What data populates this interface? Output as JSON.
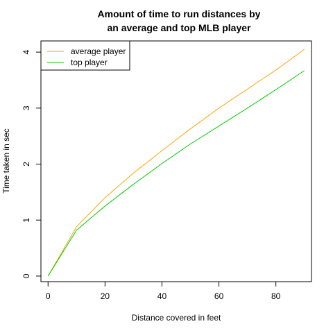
{
  "chart_data": {
    "type": "line",
    "title_line1": "Amount of time to run distances by",
    "title_line2": "an average and top MLB player",
    "xlabel": "Distance covered in feet",
    "ylabel": "Time taken in sec",
    "x": [
      0,
      10,
      20,
      30,
      40,
      50,
      60,
      70,
      80,
      90
    ],
    "series": [
      {
        "name": "average player",
        "color": "#FFA500",
        "values": [
          0,
          0.88,
          1.4,
          1.84,
          2.24,
          2.63,
          3.0,
          3.34,
          3.68,
          4.05
        ]
      },
      {
        "name": "top player",
        "color": "#00CD00",
        "values": [
          0,
          0.82,
          1.25,
          1.64,
          2.01,
          2.36,
          2.68,
          3.0,
          3.33,
          3.67
        ]
      }
    ],
    "xlim": [
      -2.5,
      92.5
    ],
    "ylim": [
      -0.1,
      4.2
    ],
    "xticks": [
      0,
      20,
      40,
      60,
      80
    ],
    "yticks": [
      0,
      1,
      2,
      3,
      4
    ],
    "legend_position": "top-left",
    "grid": false
  }
}
